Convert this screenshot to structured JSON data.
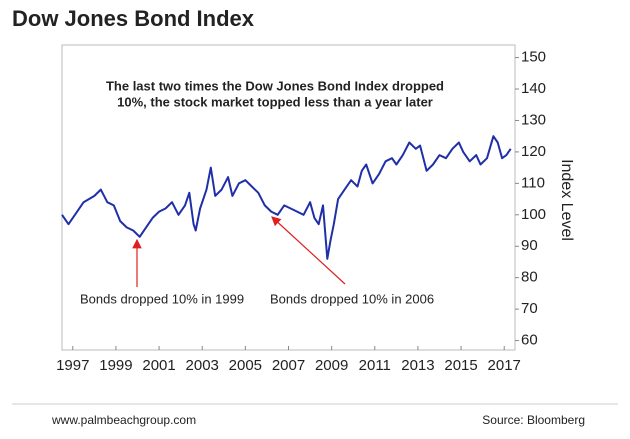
{
  "chart_data": {
    "type": "line",
    "title": "Dow Jones Bond Index",
    "y_label": "Index Level",
    "headline": [
      "The last two times the Dow Jones Bond Index dropped",
      "10%, the stock market topped less than a year later"
    ],
    "annotations": [
      "Bonds dropped 10% in 1999",
      "Bonds  dropped 10% in 2006"
    ],
    "footer_left": "www.palmbeachgroup.com",
    "footer_right": "Source: Bloomberg",
    "x": [
      1996.5,
      1996.8,
      1997,
      1997.5,
      1998,
      1998.3,
      1998.6,
      1998.9,
      1999.2,
      1999.5,
      1999.8,
      2000.1,
      2000.4,
      2000.7,
      2001,
      2001.3,
      2001.6,
      2001.9,
      2002.2,
      2002.4,
      2002.6,
      2002.7,
      2002.9,
      2003.2,
      2003.4,
      2003.6,
      2003.9,
      2004.2,
      2004.4,
      2004.7,
      2005,
      2005.3,
      2005.6,
      2005.9,
      2006.2,
      2006.5,
      2006.8,
      2007.1,
      2007.4,
      2007.7,
      2008,
      2008.2,
      2008.4,
      2008.6,
      2008.8,
      2008.95,
      2009.1,
      2009.3,
      2009.6,
      2009.9,
      2010.2,
      2010.4,
      2010.6,
      2010.9,
      2011.2,
      2011.5,
      2011.8,
      2012,
      2012.3,
      2012.6,
      2012.9,
      2013.1,
      2013.4,
      2013.7,
      2014,
      2014.3,
      2014.6,
      2014.9,
      2015.1,
      2015.4,
      2015.7,
      2015.9,
      2016.2,
      2016.5,
      2016.7,
      2016.9,
      2017.1,
      2017.3
    ],
    "series": [
      {
        "name": "Dow Jones Bond Index",
        "color": "#1f2fa8",
        "values": [
          100,
          97,
          99,
          104,
          106,
          108,
          104,
          103,
          98,
          96,
          95,
          93,
          96,
          99,
          101,
          102,
          104,
          100,
          103,
          107,
          97,
          95,
          102,
          108,
          115,
          106,
          108,
          112,
          106,
          110,
          111,
          109,
          107,
          103,
          101,
          100,
          103,
          102,
          101,
          100,
          104,
          99,
          97,
          103,
          86,
          92,
          97,
          105,
          108,
          111,
          109,
          114,
          116,
          110,
          113,
          117,
          118,
          116,
          119,
          123,
          121,
          122,
          114,
          116,
          119,
          118,
          121,
          123,
          120,
          117,
          119,
          116,
          118,
          125,
          123,
          118,
          119,
          121
        ]
      }
    ],
    "xlim": [
      1996.5,
      2017.5
    ],
    "xticks": [
      1997,
      1999,
      2001,
      2003,
      2005,
      2007,
      2009,
      2011,
      2013,
      2015,
      2017
    ],
    "ylim": [
      57,
      154
    ],
    "yticks": [
      60,
      70,
      80,
      90,
      100,
      110,
      120,
      130,
      140,
      150
    ],
    "annotation_color": "#e02020"
  }
}
